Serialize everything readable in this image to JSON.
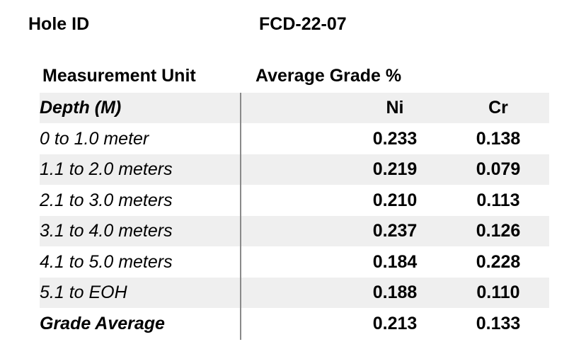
{
  "header": {
    "hole_id_label": "Hole ID",
    "hole_id_value": "FCD-22-07",
    "unit_label": "Measurement Unit",
    "grade_label": "Average Grade %"
  },
  "table": {
    "columns": {
      "depth": "Depth (M)",
      "ni": "Ni",
      "cr": "Cr"
    },
    "rows": [
      {
        "depth": "0 to 1.0 meter",
        "ni": "0.233",
        "cr": "0.138"
      },
      {
        "depth": "1.1 to 2.0 meters",
        "ni": "0.219",
        "cr": "0.079"
      },
      {
        "depth": "2.1 to 3.0 meters",
        "ni": "0.210",
        "cr": "0.113"
      },
      {
        "depth": "3.1 to 4.0 meters",
        "ni": "0.237",
        "cr": "0.126"
      },
      {
        "depth": "4.1 to 5.0 meters",
        "ni": "0.184",
        "cr": "0.228"
      },
      {
        "depth": "5.1 to EOH",
        "ni": "0.188",
        "cr": "0.110"
      }
    ],
    "average": {
      "label": "Grade Average",
      "ni": "0.213",
      "cr": "0.133"
    }
  },
  "colors": {
    "band": "#efefef",
    "divider": "#8a8a8a",
    "text": "#000000"
  }
}
